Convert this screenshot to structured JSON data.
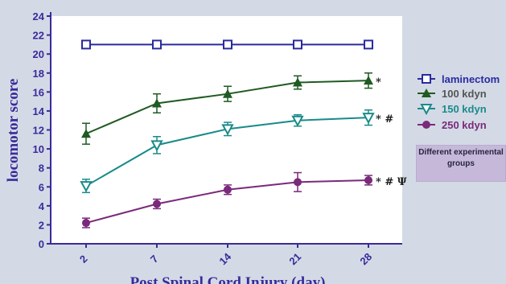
{
  "chart_data": {
    "type": "line",
    "title": "",
    "xlabel": "Post Spinal Cord Injury (day)",
    "ylabel": "locomotor score",
    "ylim": [
      0,
      24
    ],
    "yticks": [
      "0",
      "2",
      "4",
      "6",
      "8",
      "10",
      "12",
      "14",
      "16",
      "18",
      "20",
      "22",
      "24"
    ],
    "categories": [
      "2",
      "7",
      "14",
      "21",
      "28"
    ],
    "series": [
      {
        "name": "laminectom",
        "marker": "open-square",
        "color": "#2a2aa0",
        "values": [
          21,
          21,
          21,
          21,
          21
        ],
        "errors": [
          0,
          0,
          0,
          0,
          0
        ],
        "annotation": ""
      },
      {
        "name": "100 kdyn",
        "marker": "triangle-up",
        "color": "#1f5a22",
        "values": [
          11.6,
          14.8,
          15.8,
          17.0,
          17.2
        ],
        "errors": [
          1.1,
          1.0,
          0.8,
          0.7,
          0.8
        ],
        "annotation": "*"
      },
      {
        "name": "150 kdyn",
        "marker": "open-triangle-down",
        "color": "#1a8a8a",
        "values": [
          6.1,
          10.4,
          12.1,
          13.0,
          13.3
        ],
        "errors": [
          0.7,
          0.9,
          0.7,
          0.6,
          0.8
        ],
        "annotation": "* #"
      },
      {
        "name": "250 kdyn",
        "marker": "circle",
        "color": "#7a2a7a",
        "values": [
          2.2,
          4.2,
          5.7,
          6.5,
          6.7
        ],
        "errors": [
          0.5,
          0.5,
          0.5,
          1.0,
          0.5
        ],
        "annotation": "* # Ψ"
      }
    ],
    "legend_position": "right",
    "note": [
      "Different experimental",
      "groups"
    ]
  }
}
